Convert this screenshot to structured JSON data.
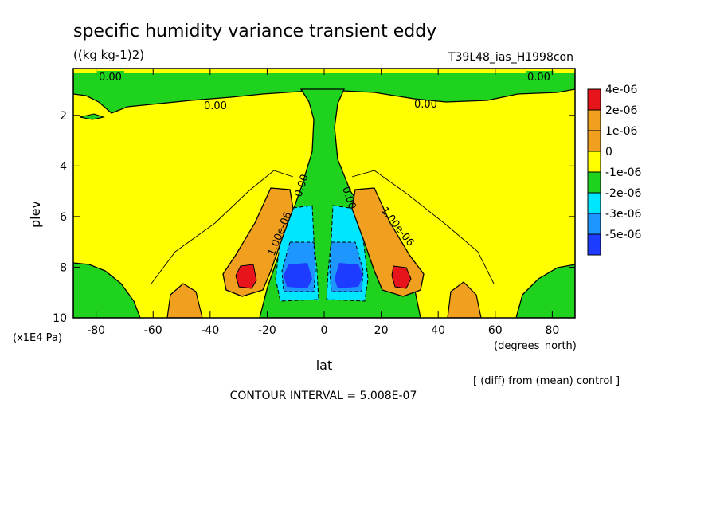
{
  "chart_data": {
    "type": "heatmap",
    "title": "specific humidity variance transient eddy",
    "units": "((kg kg-1)2)",
    "run_label": "T39L48_ias_H1998con",
    "xlabel": "lat",
    "x_units": "(degrees_north)",
    "ylabel": "plev",
    "y_units": "(x1E4 Pa)",
    "xlim": [
      -88,
      88
    ],
    "ylim": [
      10,
      0.15
    ],
    "x_ticks": [
      "-80",
      "-60",
      "-40",
      "-20",
      "0",
      "20",
      "40",
      "60",
      "80"
    ],
    "y_ticks": [
      "2",
      "4",
      "6",
      "8",
      "10"
    ],
    "note": "[ (diff) from (mean) control ]",
    "contour_interval": "CONTOUR INTERVAL = 5.008E-07",
    "contour_labels": [
      "0.00",
      "0.00",
      "0.00",
      "0.00",
      "0.00",
      "0.00",
      "1.00e-06",
      "1.00e-06"
    ],
    "legend": {
      "levels": [
        "4e-06",
        "2e-06",
        "1e-06",
        "0",
        "-1e-06",
        "-2e-06",
        "-3e-06",
        "-5e-06"
      ],
      "colors": [
        "#e8141c",
        "#f0a01e",
        "#f0a01e",
        "#ffff00",
        "#1ed21e",
        "#00e6ff",
        "#1e96ff",
        "#1e3cff"
      ]
    },
    "colors": {
      "positive_high": "#e8141c",
      "positive_mid": "#f0a01e",
      "zero_band": "#ffff00",
      "negative_small": "#1ed21e",
      "negative_mid": "#00e6ff",
      "negative_large": "#1e96ff",
      "negative_max": "#1e3cff"
    }
  }
}
